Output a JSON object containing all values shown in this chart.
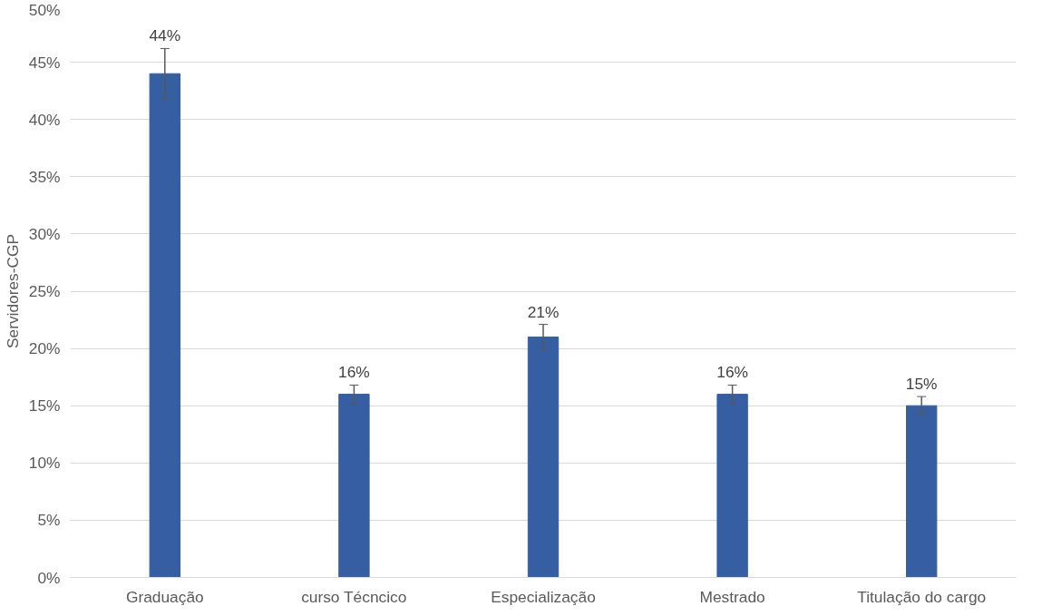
{
  "chart_data": {
    "type": "bar",
    "ylabel": "Servidores-CGP",
    "categories": [
      "Graduação",
      "curso Técncico",
      "Especialização",
      "Mestrado",
      "Titulação do cargo"
    ],
    "series": [
      {
        "color": "#365ea3",
        "values": [
          44,
          16,
          21,
          16,
          15
        ],
        "errors": [
          2.2,
          0.8,
          1.1,
          0.8,
          0.8
        ],
        "value_labels": [
          "44%",
          "16%",
          "21%",
          "16%",
          "15%"
        ]
      }
    ],
    "ylim": [
      0,
      50
    ],
    "yticks": [
      {
        "value": 0,
        "label": "0%"
      },
      {
        "value": 5,
        "label": "5%"
      },
      {
        "value": 10,
        "label": "10%"
      },
      {
        "value": 15,
        "label": "15%"
      },
      {
        "value": 20,
        "label": "20%"
      },
      {
        "value": 25,
        "label": "25%"
      },
      {
        "value": 30,
        "label": "30%"
      },
      {
        "value": 35,
        "label": "35%"
      },
      {
        "value": 40,
        "label": "40%"
      },
      {
        "value": 45,
        "label": "45%"
      },
      {
        "value": 50,
        "label": "50%"
      }
    ],
    "grid": "y"
  }
}
